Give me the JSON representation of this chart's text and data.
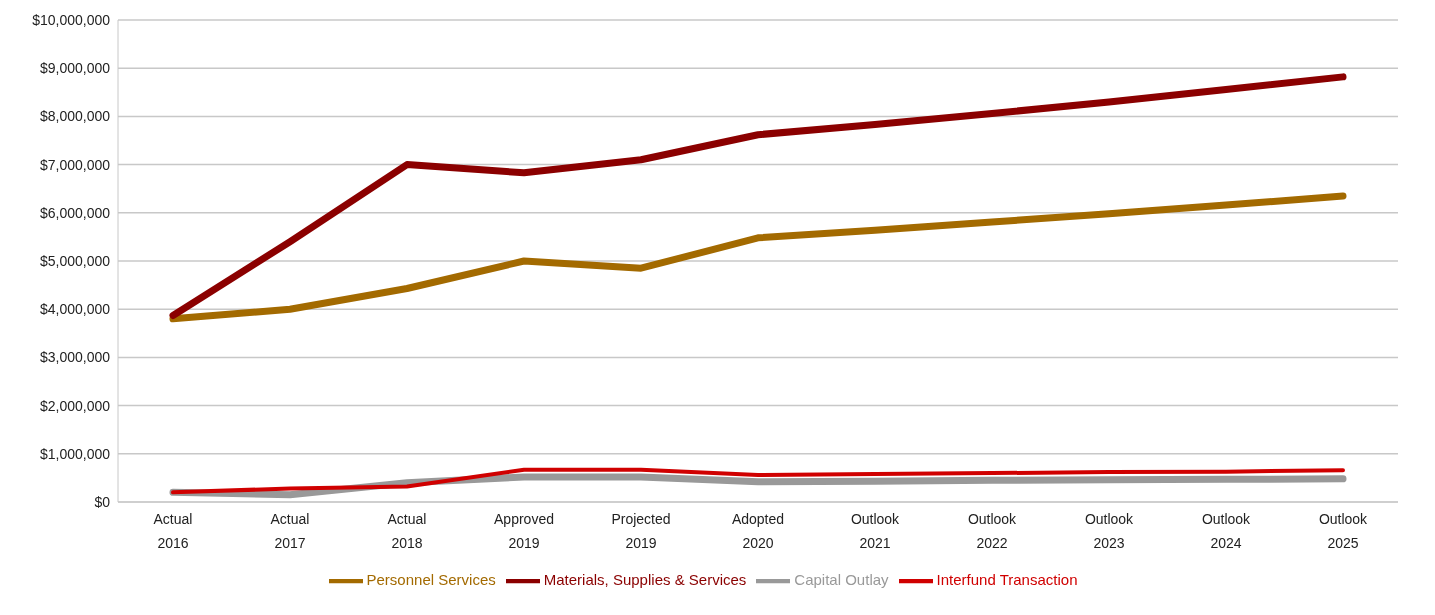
{
  "chart_data": {
    "type": "line",
    "categories": [
      "Actual 2016",
      "Actual 2017",
      "Actual 2018",
      "Approved 2019",
      "Projected 2019",
      "Adopted 2020",
      "Outlook 2021",
      "Outlook 2022",
      "Outlook 2023",
      "Outlook 2024",
      "Outlook 2025"
    ],
    "series": [
      {
        "name": "Personnel Services",
        "color": "#a36a00",
        "values": [
          3800000,
          4000000,
          4430000,
          5000000,
          4850000,
          5480000,
          5640000,
          5810000,
          5980000,
          6160000,
          6350000
        ]
      },
      {
        "name": "Materials, Supplies & Services",
        "color": "#8b0000",
        "values": [
          3870000,
          5400000,
          7000000,
          6830000,
          7100000,
          7620000,
          7830000,
          8060000,
          8300000,
          8560000,
          8820000
        ]
      },
      {
        "name": "Capital Outlay",
        "color": "#999999",
        "values": [
          200000,
          150000,
          400000,
          520000,
          520000,
          420000,
          430000,
          450000,
          460000,
          470000,
          480000
        ]
      },
      {
        "name": "Interfund Transaction",
        "color": "#d00000",
        "values": [
          200000,
          280000,
          320000,
          670000,
          670000,
          560000,
          580000,
          600000,
          620000,
          630000,
          660000
        ]
      }
    ],
    "ylim": [
      0,
      10000000
    ],
    "yticks": [
      {
        "value": 0,
        "label": "$0"
      },
      {
        "value": 1000000,
        "label": "$1,000,000"
      },
      {
        "value": 2000000,
        "label": "$2,000,000"
      },
      {
        "value": 3000000,
        "label": "$3,000,000"
      },
      {
        "value": 4000000,
        "label": "$4,000,000"
      },
      {
        "value": 5000000,
        "label": "$5,000,000"
      },
      {
        "value": 6000000,
        "label": "$6,000,000"
      },
      {
        "value": 7000000,
        "label": "$7,000,000"
      },
      {
        "value": 8000000,
        "label": "$8,000,000"
      },
      {
        "value": 9000000,
        "label": "$9,000,000"
      },
      {
        "value": 10000000,
        "label": "$10,000,000"
      }
    ],
    "grid": "y",
    "legend": "bottom",
    "marker": "none",
    "line_style": "solid"
  }
}
